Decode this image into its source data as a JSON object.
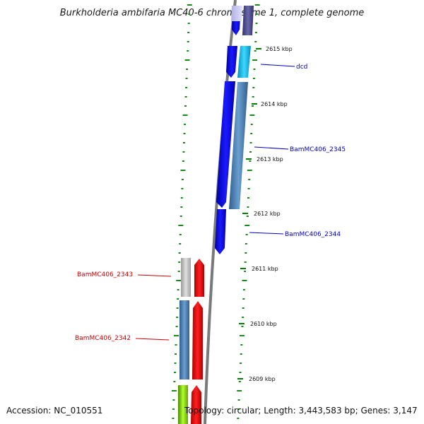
{
  "title": "Burkholderia ambifaria MC40-6 chromosome 1, complete genome",
  "footer": {
    "accession": "Accession: NC_010551",
    "topology": "Topology: circular; Length: 3,443,583 bp; Genes: 3,147"
  },
  "ticks": [
    "2615 kbp",
    "2614 kbp",
    "2613 kbp",
    "2612 kbp",
    "2611 kbp",
    "2610 kbp",
    "2609 kbp"
  ],
  "genes": [
    {
      "name": "dcd",
      "color": "#0000cc"
    },
    {
      "name": "BamMC406_2345",
      "color": "#0000cc"
    },
    {
      "name": "BamMC406_2344",
      "color": "#0000cc"
    },
    {
      "name": "BamMC406_2343",
      "color": "#cc0000"
    },
    {
      "name": "BamMC406_2342",
      "color": "#cc0000"
    }
  ],
  "colors": {
    "forward_cds": "#0000ff",
    "reverse_cds": "#ff0000",
    "backbone": "#808080",
    "tick": "#008000",
    "blast_blue": "#4682b4",
    "blast_cyan": "#00bfff",
    "blast_gray": "#c0c0c0",
    "blast_green": "#7fff00"
  }
}
